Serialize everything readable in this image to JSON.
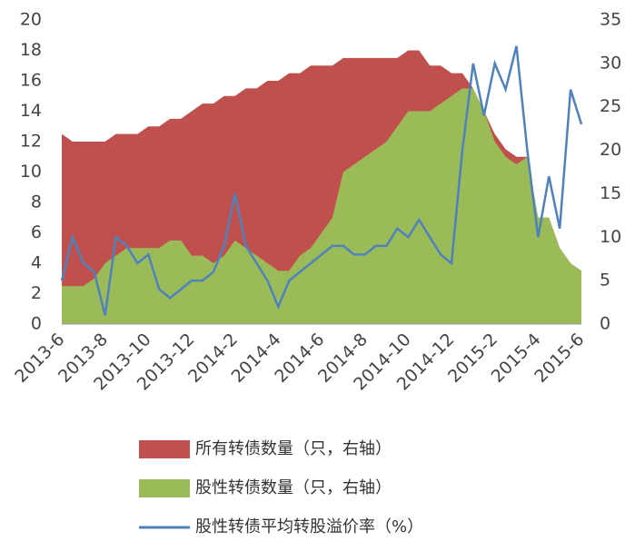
{
  "chart_data": {
    "type": "area-line",
    "categories": [
      "2013-6",
      null,
      null,
      null,
      "2013-8",
      null,
      null,
      null,
      "2013-10",
      null,
      null,
      null,
      "2013-12",
      null,
      null,
      null,
      "2014-2",
      null,
      null,
      null,
      "2014-4",
      null,
      null,
      null,
      "2014-6",
      null,
      null,
      null,
      "2014-8",
      null,
      null,
      null,
      "2014-10",
      null,
      null,
      null,
      "2014-12",
      null,
      null,
      null,
      "2015-2",
      null,
      null,
      null,
      "2015-4",
      null,
      null,
      null,
      "2015-6"
    ],
    "series": [
      {
        "name": "所有转债数量（只，右轴）",
        "color": "#c0504d",
        "kind": "area",
        "values": [
          12.5,
          12,
          12,
          12,
          12,
          12.5,
          12.5,
          12.5,
          13,
          13,
          13.5,
          13.5,
          14,
          14.5,
          14.5,
          15,
          15,
          15.5,
          15.5,
          16,
          16,
          16.5,
          16.5,
          17,
          17,
          17,
          17.5,
          17.5,
          17.5,
          17.5,
          17.5,
          17.5,
          18,
          18,
          17,
          17,
          16.5,
          16.5,
          15.5,
          14,
          12.5,
          11.5,
          11,
          11,
          7,
          7,
          5,
          4,
          3.5
        ]
      },
      {
        "name": "股性转债数量（只，右轴）",
        "color": "#9bbb59",
        "kind": "area",
        "values": [
          2.5,
          2.5,
          2.5,
          3,
          4,
          4.5,
          5,
          5,
          5,
          5,
          5.5,
          5.5,
          4.5,
          4.5,
          4,
          4.5,
          5.5,
          5,
          4.5,
          4,
          3.5,
          3.5,
          4.5,
          5,
          6,
          7,
          10,
          10.5,
          11,
          11.5,
          12,
          13,
          14,
          14,
          14,
          14.5,
          15,
          15.5,
          15.5,
          14,
          12,
          11,
          10.5,
          11,
          7,
          7,
          5,
          4,
          3.5
        ]
      },
      {
        "name": "股性转债平均转股溢价率（%）",
        "color": "#4f81bd",
        "kind": "line",
        "axis": "y2",
        "values": [
          5,
          10,
          7,
          6,
          1,
          10,
          9,
          7,
          8,
          4,
          3,
          4,
          5,
          5,
          6,
          9,
          15,
          9,
          7,
          5,
          2,
          5,
          6,
          7,
          8,
          9,
          9,
          8,
          8,
          9,
          9,
          11,
          10,
          12,
          10,
          8,
          7,
          20,
          30,
          24,
          30,
          27,
          32,
          20,
          10,
          17,
          11,
          27,
          23
        ]
      }
    ],
    "ylim": [
      0,
      20
    ],
    "yticks": [
      0,
      2,
      4,
      6,
      8,
      10,
      12,
      14,
      16,
      18,
      20
    ],
    "y2lim": [
      0,
      35
    ],
    "y2ticks": [
      0,
      5,
      10,
      15,
      20,
      25,
      30,
      35
    ]
  }
}
